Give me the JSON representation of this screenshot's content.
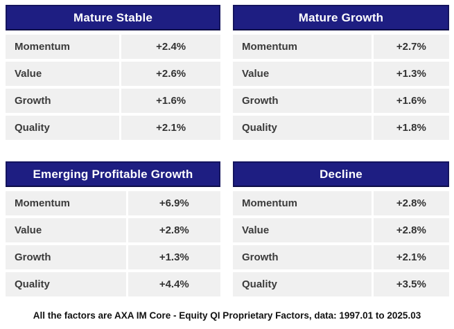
{
  "tables": [
    {
      "title": "Mature Stable",
      "rows": [
        {
          "label": "Momentum",
          "value": "+2.4%"
        },
        {
          "label": "Value",
          "value": "+2.6%"
        },
        {
          "label": "Growth",
          "value": "+1.6%"
        },
        {
          "label": "Quality",
          "value": "+2.1%"
        }
      ]
    },
    {
      "title": "Mature Growth",
      "rows": [
        {
          "label": "Momentum",
          "value": "+2.7%"
        },
        {
          "label": "Value",
          "value": "+1.3%"
        },
        {
          "label": "Growth",
          "value": "+1.6%"
        },
        {
          "label": "Quality",
          "value": "+1.8%"
        }
      ]
    },
    {
      "title": "Emerging Profitable Growth",
      "rows": [
        {
          "label": "Momentum",
          "value": "+6.9%"
        },
        {
          "label": "Value",
          "value": "+2.8%"
        },
        {
          "label": "Growth",
          "value": "+1.3%"
        },
        {
          "label": "Quality",
          "value": "+4.4%"
        }
      ]
    },
    {
      "title": "Decline",
      "rows": [
        {
          "label": "Momentum",
          "value": "+2.8%"
        },
        {
          "label": "Value",
          "value": "+2.8%"
        },
        {
          "label": "Growth",
          "value": "+2.1%"
        },
        {
          "label": "Quality",
          "value": "+3.5%"
        }
      ]
    }
  ],
  "footnote": "All the factors are AXA IM Core - Equity QI Proprietary Factors, data: 1997.01 to 2025.03",
  "colors": {
    "header_bg": "#1e1e82",
    "header_border": "#14145e",
    "header_text": "#ffffff",
    "row_bg": "#f0f0f0",
    "row_text": "#3b3b3b"
  },
  "chart_data": [
    {
      "type": "table",
      "title": "Mature Stable",
      "categories": [
        "Momentum",
        "Value",
        "Growth",
        "Quality"
      ],
      "values": [
        2.4,
        2.6,
        1.6,
        2.1
      ],
      "value_unit": "%",
      "value_labels": [
        "+2.4%",
        "+2.6%",
        "+1.6%",
        "+2.1%"
      ]
    },
    {
      "type": "table",
      "title": "Mature Growth",
      "categories": [
        "Momentum",
        "Value",
        "Growth",
        "Quality"
      ],
      "values": [
        2.7,
        1.3,
        1.6,
        1.8
      ],
      "value_unit": "%",
      "value_labels": [
        "+2.7%",
        "+1.3%",
        "+1.6%",
        "+1.8%"
      ]
    },
    {
      "type": "table",
      "title": "Emerging Profitable Growth",
      "categories": [
        "Momentum",
        "Value",
        "Growth",
        "Quality"
      ],
      "values": [
        6.9,
        2.8,
        1.3,
        4.4
      ],
      "value_unit": "%",
      "value_labels": [
        "+6.9%",
        "+2.8%",
        "+1.3%",
        "+4.4%"
      ]
    },
    {
      "type": "table",
      "title": "Decline",
      "categories": [
        "Momentum",
        "Value",
        "Growth",
        "Quality"
      ],
      "values": [
        2.8,
        2.8,
        2.1,
        3.5
      ],
      "value_unit": "%",
      "value_labels": [
        "+2.8%",
        "+2.8%",
        "+2.1%",
        "+3.5%"
      ]
    }
  ]
}
